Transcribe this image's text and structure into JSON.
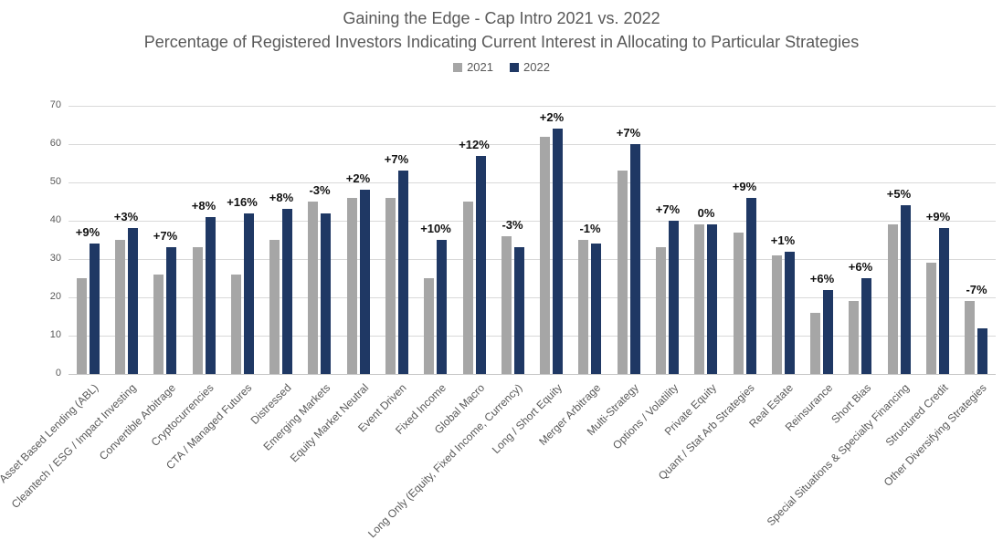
{
  "chart_data": {
    "type": "bar",
    "title": "Gaining the Edge - Cap Intro 2021 vs. 2022",
    "subtitle": "Percentage of Registered Investors Indicating Current Interest in Allocating to Particular Strategies",
    "legend": [
      "2021",
      "2022"
    ],
    "legend_position": "top",
    "grid": true,
    "xlabel": "",
    "ylabel": "",
    "ylim": [
      0,
      70
    ],
    "yticks": [
      0,
      10,
      20,
      30,
      40,
      50,
      60,
      70
    ],
    "categories": [
      "Asset Based Lending (ABL)",
      "Cleantech / ESG / Impact Investing",
      "Convertible Arbitrage",
      "Cryptocurrencies",
      "CTA / Managed Futures",
      "Distressed",
      "Emerging Markets",
      "Equity Market Neutral",
      "Event Driven",
      "Fixed Income",
      "Global Macro",
      "Long Only (Equity, Fixed Income, Currency)",
      "Long / Short Equity",
      "Merger Arbitrage",
      "Multi-Strategy",
      "Options / Volatility",
      "Private Equity",
      "Quant / Stat Arb Strategies",
      "Real Estate",
      "Reinsurance",
      "Short Bias",
      "Special Situations & Specialty Financing",
      "Structured Credit",
      "Other Diversifying Strategies"
    ],
    "series": [
      {
        "name": "2021",
        "color": "#A6A6A6",
        "values": [
          25,
          35,
          26,
          33,
          26,
          35,
          45,
          46,
          46,
          25,
          45,
          36,
          62,
          35,
          53,
          33,
          39,
          37,
          31,
          16,
          19,
          39,
          29,
          19
        ]
      },
      {
        "name": "2022",
        "color": "#1F3864",
        "values": [
          34,
          38,
          33,
          41,
          42,
          43,
          42,
          48,
          53,
          35,
          57,
          33,
          64,
          34,
          60,
          40,
          39,
          46,
          32,
          22,
          25,
          44,
          38,
          12
        ]
      }
    ],
    "change_labels": [
      "+9%",
      "+3%",
      "+7%",
      "+8%",
      "+16%",
      "+8%",
      "-3%",
      "+2%",
      "+7%",
      "+10%",
      "+12%",
      "-3%",
      "+2%",
      "-1%",
      "+7%",
      "+7%",
      "0%",
      "+9%",
      "+1%",
      "+6%",
      "+6%",
      "+5%",
      "+9%",
      "-7%"
    ],
    "colors": {
      "series_2021": "#A6A6A6",
      "series_2022": "#1F3864",
      "gridline": "#D9D9D9",
      "text": "#595959",
      "data_label": "#111111",
      "background": "#FFFFFF"
    }
  }
}
